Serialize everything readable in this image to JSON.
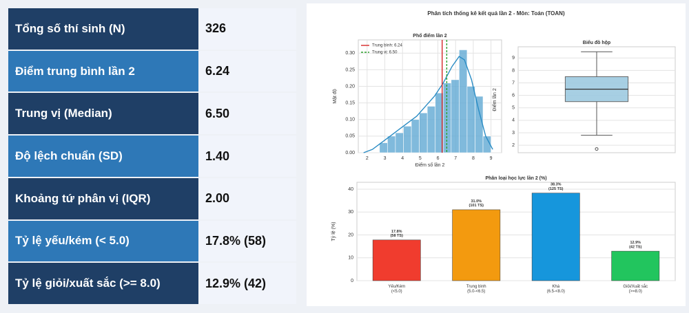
{
  "table": {
    "rows": [
      [
        "Tổng số thí sinh (N)",
        "326"
      ],
      [
        "Điểm trung bình lần 2",
        "6.24"
      ],
      [
        "Trung vị (Median)",
        "6.50"
      ],
      [
        "Độ lệch chuẩn (SD)",
        "1.40"
      ],
      [
        "Khoảng tứ phân vị (IQR)",
        "2.00"
      ],
      [
        "Tỷ lệ yếu/kém (< 5.0)",
        "17.8% (58)"
      ],
      [
        "Tỷ lệ giỏi/xuất sắc (>= 8.0)",
        "12.9% (42)"
      ]
    ]
  },
  "figure_title": "Phân tích thống kê kết quả lần 2 - Môn: Toán (TOAN)",
  "chart_data": [
    {
      "type": "histogram",
      "title": "Phổ điểm lần 2",
      "x_label": "Điểm số lần 2",
      "y_label": "Mật độ",
      "bins": [
        2.7,
        3.15,
        3.6,
        4.05,
        4.5,
        4.95,
        5.4,
        5.85,
        6.3,
        6.75,
        7.2,
        7.65,
        8.1,
        8.55,
        9.0
      ],
      "values": [
        0.03,
        0.05,
        0.06,
        0.08,
        0.1,
        0.12,
        0.14,
        0.18,
        0.21,
        0.22,
        0.31,
        0.2,
        0.17,
        0.05
      ],
      "color": "#6aaed6",
      "kde": {
        "x": [
          1.8,
          2.3,
          2.8,
          3.3,
          3.8,
          4.3,
          4.8,
          5.3,
          5.8,
          6.3,
          6.8,
          7.2,
          7.5,
          7.9,
          8.3,
          8.7,
          9.1
        ],
        "values": [
          0.0,
          0.01,
          0.03,
          0.05,
          0.07,
          0.09,
          0.11,
          0.14,
          0.17,
          0.21,
          0.26,
          0.29,
          0.28,
          0.22,
          0.13,
          0.05,
          0.01
        ],
        "color": "#2a8cc4"
      },
      "reference_lines": [
        {
          "name": "Trung bình: 6.24",
          "value": 6.24,
          "color": "#d62728",
          "style": "solid"
        },
        {
          "name": "Trung vị: 6.50",
          "value": 6.5,
          "color": "#2ca02c",
          "style": "dashed"
        }
      ],
      "xlim": [
        1.5,
        9.6
      ],
      "ylim": [
        0,
        0.34
      ],
      "xticks": [
        2,
        3,
        4,
        5,
        6,
        7,
        8,
        9
      ],
      "yticks": [
        {
          "value": 0,
          "label": "0.00"
        },
        {
          "value": 0.05,
          "label": "0.05"
        },
        {
          "value": 0.1,
          "label": "0.10"
        },
        {
          "value": 0.15,
          "label": "0.15"
        },
        {
          "value": 0.2,
          "label": "0.20"
        },
        {
          "value": 0.25,
          "label": "0.25"
        },
        {
          "value": 0.3,
          "label": "0.30"
        }
      ],
      "grid": true,
      "legend": "upper left"
    },
    {
      "type": "box",
      "title": "Biểu đồ hộp",
      "y_label": "Điểm lần 2",
      "box": {
        "min": 2.8,
        "q1": 5.5,
        "median": 6.5,
        "q3": 7.5,
        "max": 9.5
      },
      "outliers": [
        1.7
      ],
      "color": "#9ecae1",
      "ylim": [
        1.4,
        9.9
      ],
      "yticks": [
        2,
        3,
        4,
        5,
        6,
        7,
        8,
        9
      ],
      "grid": true
    },
    {
      "type": "bar",
      "title": "Phân loại học lực lần 2 (%)",
      "y_label": "Tỷ lệ (%)",
      "categories": [
        "Yếu/Kém\n(<5.0)",
        "Trung bình\n(5.0-<6.5)",
        "Khá\n(6.5-<8.0)",
        "Giỏi/Xuất sắc\n(>=8.0)"
      ],
      "values": [
        17.8,
        31.0,
        38.3,
        12.9
      ],
      "value_labels": [
        "17.8%\n(58 TS)",
        "31.0%\n(101 TS)",
        "38.3%\n(125 TS)",
        "12.9%\n(42 TS)"
      ],
      "colors": [
        "#f03c2e",
        "#f39a0f",
        "#1696dc",
        "#22c55e"
      ],
      "ylim": [
        0,
        43
      ],
      "yticks": [
        0,
        10,
        20,
        30,
        40
      ],
      "grid": true
    }
  ]
}
